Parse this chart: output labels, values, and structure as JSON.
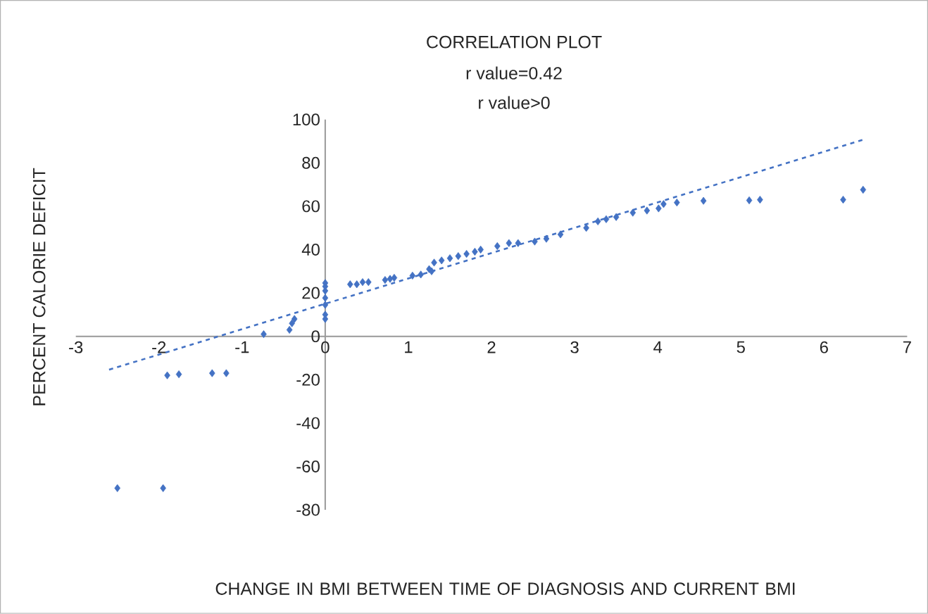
{
  "chart_data": {
    "type": "scatter",
    "title": "CORRELATION PLOT",
    "subtitle": "r value=0.42",
    "annotations": [
      "r value>0"
    ],
    "xlabel": "CHANGE IN BMI BETWEEN TIME OF DIAGNOSIS AND CURRENT BMI",
    "ylabel": "PERCENT CALORIE DEFICIT",
    "xlim": [
      -3,
      7
    ],
    "ylim": [
      -80,
      100
    ],
    "xticks": [
      -3,
      -2,
      -1,
      0,
      1,
      2,
      3,
      4,
      5,
      6,
      7
    ],
    "yticks": [
      -80,
      -60,
      -40,
      -20,
      0,
      20,
      40,
      60,
      80,
      100
    ],
    "series": [
      {
        "marker": "diamond",
        "color": "#4472c4",
        "x": [
          -2.5,
          -1.95,
          -1.9,
          -1.76,
          -1.36,
          -1.19,
          -0.74,
          -0.43,
          -0.4,
          -0.37,
          0,
          0,
          0,
          0,
          0,
          0,
          0,
          0.3,
          0.38,
          0.45,
          0.52,
          0.72,
          0.78,
          0.83,
          1.05,
          1.15,
          1.25,
          1.28,
          1.31,
          1.4,
          1.5,
          1.6,
          1.7,
          1.8,
          1.87,
          2.07,
          2.21,
          2.32,
          2.52,
          2.66,
          2.83,
          3.14,
          3.28,
          3.38,
          3.5,
          3.7,
          3.87,
          4.01,
          4.07,
          4.23,
          4.55,
          5.1,
          5.23,
          6.23,
          6.47
        ],
        "values": [
          -70,
          -70,
          -18,
          -17.5,
          -17,
          -17,
          1,
          3,
          6,
          8,
          8,
          10,
          14.5,
          17.7,
          21,
          23,
          24.6,
          24,
          24,
          25,
          25,
          26,
          26.5,
          27,
          28,
          28.5,
          31,
          30,
          34,
          35,
          36,
          37,
          38,
          39,
          40,
          41.6,
          43,
          43,
          43.7,
          45,
          47,
          50,
          53,
          54,
          55,
          57,
          58,
          59,
          61,
          61.7,
          62.5,
          62.7,
          63,
          63,
          67.6
        ]
      },
      {
        "type": "line",
        "marker": "none",
        "color": "#4472c4",
        "line_style": "dashed",
        "x": [
          -2.6,
          6.5
        ],
        "values": [
          -15.4,
          91
        ]
      }
    ]
  }
}
